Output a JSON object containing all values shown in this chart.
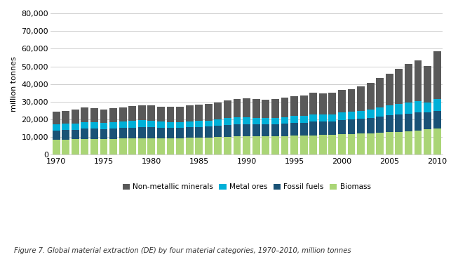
{
  "years": [
    1970,
    1971,
    1972,
    1973,
    1974,
    1975,
    1976,
    1977,
    1978,
    1979,
    1980,
    1981,
    1982,
    1983,
    1984,
    1985,
    1986,
    1987,
    1988,
    1989,
    1990,
    1991,
    1992,
    1993,
    1994,
    1995,
    1996,
    1997,
    1998,
    1999,
    2000,
    2001,
    2002,
    2003,
    2004,
    2005,
    2006,
    2007,
    2008,
    2009,
    2010
  ],
  "biomass": [
    8600,
    8700,
    8800,
    9000,
    9100,
    9000,
    9100,
    9200,
    9400,
    9500,
    9500,
    9400,
    9400,
    9500,
    9600,
    9700,
    9800,
    10000,
    10200,
    10300,
    10400,
    10300,
    10300,
    10400,
    10500,
    10700,
    10800,
    11000,
    11100,
    11200,
    11500,
    11700,
    11900,
    12000,
    12400,
    12700,
    12900,
    13200,
    13700,
    14500,
    14700
  ],
  "fossil_fuels": [
    5000,
    5200,
    5400,
    5700,
    5700,
    5400,
    5700,
    5900,
    6000,
    6300,
    6100,
    5900,
    5700,
    5700,
    5900,
    6000,
    6100,
    6400,
    6700,
    6900,
    6900,
    6800,
    6800,
    6800,
    7000,
    7200,
    7400,
    7700,
    7700,
    7800,
    8100,
    8200,
    8400,
    8800,
    9200,
    9600,
    9900,
    10000,
    10100,
    9400,
    10000
  ],
  "metal_ores": [
    3500,
    3600,
    3600,
    3800,
    3800,
    3500,
    3700,
    3800,
    3900,
    3900,
    3700,
    3500,
    3400,
    3300,
    3500,
    3500,
    3500,
    3600,
    3800,
    3900,
    4000,
    3800,
    3700,
    3700,
    3900,
    4000,
    4000,
    4200,
    4000,
    4000,
    4200,
    4300,
    4500,
    4800,
    5200,
    5500,
    5800,
    6200,
    6500,
    5500,
    7000
  ],
  "non_metallic": [
    7100,
    7400,
    7600,
    8100,
    7900,
    7500,
    7800,
    7900,
    8200,
    8400,
    8600,
    8400,
    8500,
    8700,
    9000,
    9100,
    9300,
    9500,
    10100,
    10300,
    10500,
    10500,
    10500,
    10500,
    10800,
    11100,
    11500,
    12200,
    12000,
    12300,
    13000,
    13000,
    13800,
    15200,
    16500,
    18000,
    20000,
    22000,
    23000,
    21000,
    27000
  ],
  "colors": {
    "biomass": "#aad576",
    "fossil_fuels": "#1a5276",
    "metal_ores": "#00b0d8",
    "non_metallic": "#595959"
  },
  "ylabel": "million tonnes",
  "ylim": [
    0,
    80000
  ],
  "yticks": [
    0,
    10000,
    20000,
    30000,
    40000,
    50000,
    60000,
    70000,
    80000
  ],
  "xticks": [
    1970,
    1975,
    1980,
    1985,
    1990,
    1995,
    2000,
    2005,
    2010
  ],
  "legend_labels": [
    "Non-metallic minerals",
    "Metal ores",
    "Fossil fuels",
    "Biomass"
  ],
  "legend_colors": [
    "#595959",
    "#00b0d8",
    "#1a5276",
    "#aad576"
  ],
  "caption": "Figure 7. Global material extraction (DE) by four material categories, 1970–2010, million tonnes",
  "background_color": "#ffffff",
  "bar_width": 0.8
}
